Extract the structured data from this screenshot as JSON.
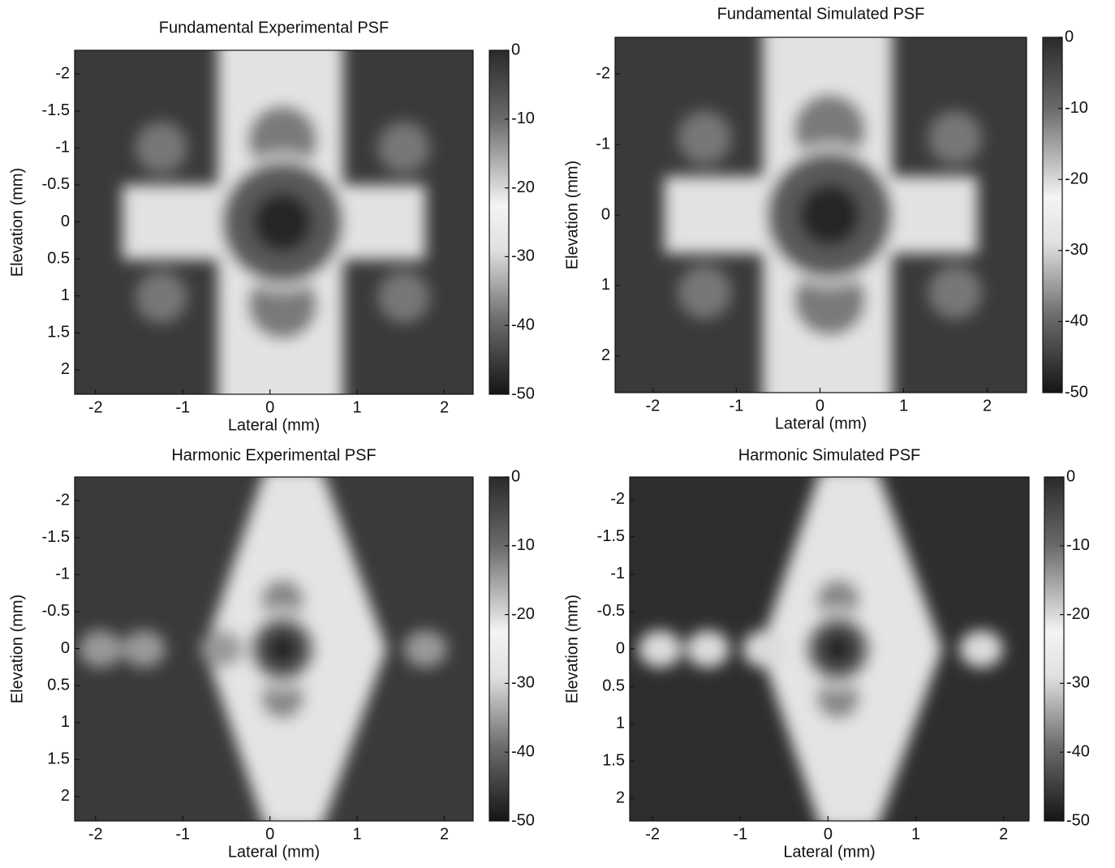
{
  "chart_data": [
    {
      "type": "heatmap",
      "title": "Fundamental Experimental PSF",
      "xlabel": "Lateral (mm)",
      "ylabel": "Elevation (mm)",
      "xlim": [
        -2.24,
        2.33
      ],
      "ylim": [
        -2.32,
        2.33
      ],
      "y_reversed": true,
      "xticks": [
        -2,
        -1,
        0,
        1,
        2
      ],
      "yticks": [
        -2,
        -1.5,
        -1,
        -0.5,
        0,
        0.5,
        1,
        1.5,
        2
      ],
      "colormap": "gray",
      "clim": [
        -50,
        0
      ],
      "cticks": [
        0,
        -10,
        -20,
        -30,
        -40,
        -50
      ]
    },
    {
      "type": "heatmap",
      "title": "Fundamental Simulated PSF",
      "xlabel": "Lateral (mm)",
      "ylabel": "Elevation (mm)",
      "xlim": [
        -2.45,
        2.47
      ],
      "ylim": [
        -2.52,
        2.52
      ],
      "y_reversed": true,
      "xticks": [
        -2,
        -1,
        0,
        1,
        2
      ],
      "yticks": [
        -2,
        -1,
        0,
        1,
        2
      ],
      "colormap": "gray",
      "clim": [
        -50,
        0
      ],
      "cticks": [
        0,
        -10,
        -20,
        -30,
        -40,
        -50
      ]
    },
    {
      "type": "heatmap",
      "title": "Harmonic Experimental PSF",
      "xlabel": "Lateral (mm)",
      "ylabel": "Elevation (mm)",
      "xlim": [
        -2.24,
        2.33
      ],
      "ylim": [
        -2.32,
        2.33
      ],
      "y_reversed": true,
      "xticks": [
        -2,
        -1,
        0,
        1,
        2
      ],
      "yticks": [
        -2,
        -1.5,
        -1,
        -0.5,
        0,
        0.5,
        1,
        1.5,
        2
      ],
      "colormap": "gray",
      "clim": [
        -50,
        0
      ],
      "cticks": [
        0,
        -10,
        -20,
        -30,
        -40,
        -50
      ]
    },
    {
      "type": "heatmap",
      "title": "Harmonic Simulated PSF",
      "xlabel": "Lateral (mm)",
      "ylabel": "Elevation (mm)",
      "xlim": [
        -2.26,
        2.29
      ],
      "ylim": [
        -2.3,
        2.3
      ],
      "y_reversed": true,
      "xticks": [
        -2,
        -1,
        0,
        1,
        2
      ],
      "yticks": [
        -2,
        -1.5,
        -1,
        -0.5,
        0,
        0.5,
        1,
        1.5,
        2
      ],
      "colormap": "gray",
      "clim": [
        -50,
        0
      ],
      "cticks": [
        0,
        -10,
        -20,
        -30,
        -40,
        -50
      ]
    }
  ]
}
